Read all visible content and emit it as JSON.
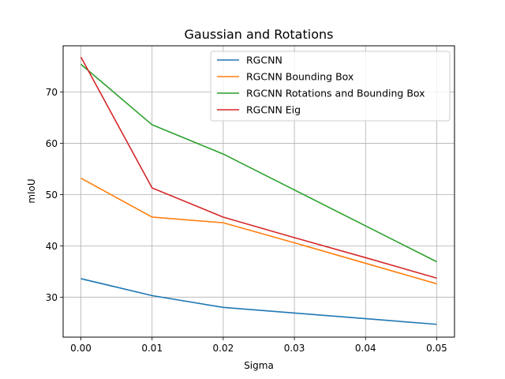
{
  "chart_data": {
    "type": "line",
    "title": "Gaussian and Rotations",
    "xlabel": "Sigma",
    "ylabel": "mIoU",
    "x": [
      0.0,
      0.01,
      0.02,
      0.03,
      0.04,
      0.05
    ],
    "x_ticks": [
      "0.00",
      "0.01",
      "0.02",
      "0.03",
      "0.04",
      "0.05"
    ],
    "y_ticks": [
      "30",
      "40",
      "50",
      "60",
      "70"
    ],
    "xlim": [
      -0.0025,
      0.0525
    ],
    "ylim": [
      22.2,
      79.0
    ],
    "grid": true,
    "legend_position": "top-right",
    "series": [
      {
        "name": "RGCNN",
        "color": "#1f77b4",
        "values": [
          33.6,
          30.3,
          28.0,
          26.9,
          25.8,
          24.7
        ]
      },
      {
        "name": "RGCNN Bounding Box",
        "color": "#ff7f0e",
        "values": [
          53.2,
          45.6,
          44.5,
          40.6,
          36.6,
          32.6
        ]
      },
      {
        "name": "RGCNN Rotations and Bounding Box",
        "color": "#2ca02c",
        "values": [
          75.4,
          63.6,
          57.9,
          50.9,
          43.9,
          36.9
        ]
      },
      {
        "name": "RGCNN Eig",
        "color": "#d62728",
        "values": [
          76.8,
          51.3,
          45.6,
          41.6,
          37.7,
          33.7
        ]
      }
    ]
  }
}
